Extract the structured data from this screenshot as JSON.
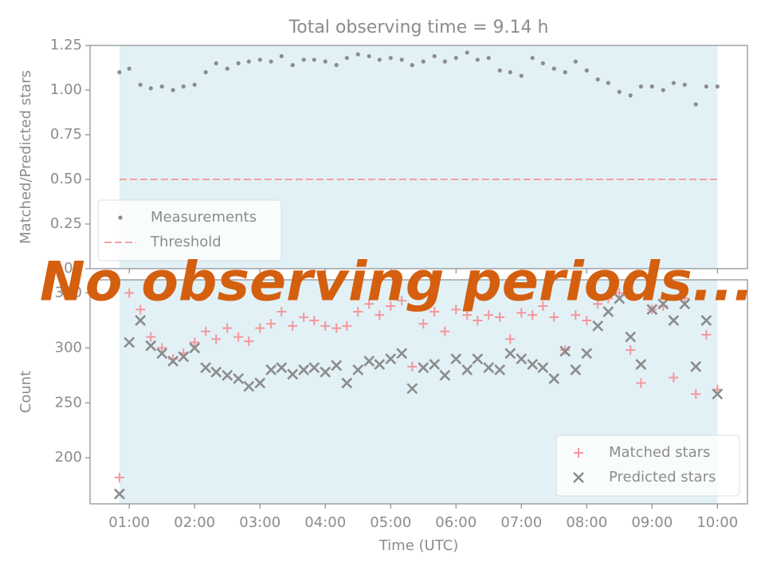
{
  "chart_data": [
    {
      "type": "scatter",
      "title": "Total observing time = 9.14 h",
      "ylabel": "Matched/Predicted stars",
      "x": [
        0.85,
        1.0,
        1.17,
        1.33,
        1.5,
        1.67,
        1.83,
        2.0,
        2.17,
        2.33,
        2.5,
        2.67,
        2.83,
        3.0,
        3.17,
        3.33,
        3.5,
        3.67,
        3.83,
        4.0,
        4.17,
        4.33,
        4.5,
        4.67,
        4.83,
        5.0,
        5.17,
        5.33,
        5.5,
        5.67,
        5.83,
        6.0,
        6.17,
        6.33,
        6.5,
        6.67,
        6.83,
        7.0,
        7.17,
        7.33,
        7.5,
        7.67,
        7.83,
        8.0,
        8.17,
        8.33,
        8.5,
        8.67,
        8.83,
        9.0,
        9.17,
        9.33,
        9.5,
        9.67,
        9.83,
        10.0
      ],
      "series": [
        {
          "name": "Measurements",
          "color": "#8c8c8c",
          "marker": "dot",
          "values": [
            1.1,
            1.12,
            1.03,
            1.01,
            1.02,
            1.0,
            1.02,
            1.03,
            1.1,
            1.15,
            1.12,
            1.15,
            1.16,
            1.17,
            1.16,
            1.19,
            1.14,
            1.17,
            1.17,
            1.16,
            1.14,
            1.18,
            1.2,
            1.19,
            1.17,
            1.18,
            1.17,
            1.14,
            1.16,
            1.19,
            1.16,
            1.18,
            1.21,
            1.17,
            1.18,
            1.11,
            1.1,
            1.08,
            1.18,
            1.15,
            1.12,
            1.1,
            1.16,
            1.11,
            1.06,
            1.04,
            0.99,
            0.97,
            1.02,
            1.02,
            1.0,
            1.04,
            1.03,
            0.92,
            1.02,
            1.02
          ]
        }
      ],
      "threshold": {
        "name": "Threshold",
        "value": 0.5,
        "color": "#f4a0a4"
      },
      "span": [
        0.85,
        10.0
      ],
      "span_color": "#add8e6",
      "xlim": [
        0.4,
        10.46
      ],
      "ylim": [
        0,
        1.25
      ],
      "yticks": [
        {
          "value": 0,
          "label": "0.00"
        },
        {
          "value": 0.25,
          "label": "0.25"
        },
        {
          "value": 0.5,
          "label": "0.50"
        },
        {
          "value": 0.75,
          "label": "0.75"
        },
        {
          "value": 1,
          "label": "1.00"
        },
        {
          "value": 1.25,
          "label": "1.25"
        }
      ],
      "legend": "lower left"
    },
    {
      "type": "scatter",
      "ylabel": "Count",
      "xlabel": "Time (UTC)",
      "x": [
        0.85,
        1.0,
        1.17,
        1.33,
        1.5,
        1.67,
        1.83,
        2.0,
        2.17,
        2.33,
        2.5,
        2.67,
        2.83,
        3.0,
        3.17,
        3.33,
        3.5,
        3.67,
        3.83,
        4.0,
        4.17,
        4.33,
        4.5,
        4.67,
        4.83,
        5.0,
        5.17,
        5.33,
        5.5,
        5.67,
        5.83,
        6.0,
        6.17,
        6.33,
        6.5,
        6.67,
        6.83,
        7.0,
        7.17,
        7.33,
        7.5,
        7.67,
        7.83,
        8.0,
        8.17,
        8.33,
        8.5,
        8.67,
        8.83,
        9.0,
        9.17,
        9.33,
        9.5,
        9.67,
        9.83,
        10.0
      ],
      "series": [
        {
          "name": "Matched stars",
          "color": "#f4979b",
          "marker": "plus",
          "values": [
            182,
            350,
            335,
            310,
            300,
            290,
            295,
            305,
            315,
            308,
            318,
            310,
            306,
            318,
            322,
            333,
            320,
            328,
            325,
            320,
            318,
            320,
            333,
            340,
            330,
            338,
            343,
            283,
            322,
            333,
            315,
            335,
            330,
            325,
            330,
            328,
            308,
            332,
            330,
            338,
            328,
            298,
            330,
            325,
            340,
            345,
            350,
            298,
            268,
            335,
            338,
            273,
            345,
            258,
            312,
            262
          ]
        },
        {
          "name": "Predicted stars",
          "color": "#8c8c8c",
          "marker": "x",
          "values": [
            167,
            305,
            325,
            302,
            295,
            288,
            292,
            300,
            282,
            278,
            275,
            272,
            265,
            268,
            280,
            282,
            276,
            280,
            282,
            278,
            284,
            268,
            280,
            288,
            285,
            290,
            295,
            263,
            282,
            285,
            275,
            290,
            280,
            290,
            282,
            280,
            295,
            290,
            285,
            282,
            272,
            297,
            280,
            295,
            320,
            333,
            345,
            310,
            285,
            335,
            340,
            325,
            340,
            283,
            325,
            258
          ]
        }
      ],
      "span": [
        0.85,
        10.0
      ],
      "span_color": "#add8e6",
      "xlim": [
        0.4,
        10.46
      ],
      "xticks": [
        {
          "value": 1,
          "label": "01:00"
        },
        {
          "value": 2,
          "label": "02:00"
        },
        {
          "value": 3,
          "label": "03:00"
        },
        {
          "value": 4,
          "label": "04:00"
        },
        {
          "value": 5,
          "label": "05:00"
        },
        {
          "value": 6,
          "label": "06:00"
        },
        {
          "value": 7,
          "label": "07:00"
        },
        {
          "value": 8,
          "label": "08:00"
        },
        {
          "value": 9,
          "label": "09:00"
        },
        {
          "value": 10,
          "label": "10:00"
        }
      ],
      "ylim": [
        158,
        362
      ],
      "yticks": [
        200,
        250,
        300,
        350
      ],
      "legend": "lower right"
    }
  ],
  "overlay_text": "No observing periods..."
}
